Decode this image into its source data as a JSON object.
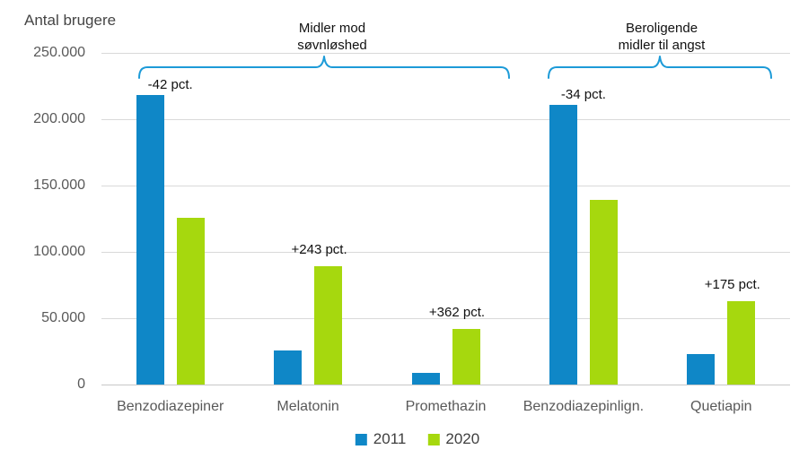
{
  "chart_data": {
    "type": "bar",
    "title": "Antal brugere",
    "categories": [
      "Benzodiazepiner",
      "Melatonin",
      "Promethazin",
      "Benzodiazepinlign.",
      "Quetiapin"
    ],
    "series": [
      {
        "name": "2011",
        "color": "#0f87c7",
        "values": [
          218000,
          26000,
          9000,
          211000,
          23000
        ]
      },
      {
        "name": "2020",
        "color": "#a6d80e",
        "values": [
          126000,
          89000,
          42000,
          139000,
          63000
        ]
      }
    ],
    "ylim": [
      0,
      250000
    ],
    "ytick_step": 50000,
    "ytick_labels": [
      "0",
      "50.000",
      "100.000",
      "150.000",
      "200.000",
      "250.000"
    ],
    "grid": true,
    "legend_position": "bottom",
    "annotations": [
      {
        "category_index": 0,
        "over": "2011",
        "text": "-42 pct."
      },
      {
        "category_index": 1,
        "over": "2020",
        "text": "+243 pct."
      },
      {
        "category_index": 2,
        "over": "2020",
        "text": "+362 pct."
      },
      {
        "category_index": 3,
        "over": "2011",
        "text": "-34 pct."
      },
      {
        "category_index": 4,
        "over": "2020",
        "text": "+175 pct."
      }
    ],
    "group_brackets": [
      {
        "label": "Midler mod\nsøvnløshed",
        "categories": [
          "Benzodiazepiner",
          "Melatonin",
          "Promethazin"
        ]
      },
      {
        "label": "Beroligende\nmidler til angst",
        "categories": [
          "Benzodiazepinlign.",
          "Quetiapin"
        ]
      }
    ],
    "colors": {
      "grid": "#d9d9d9",
      "baseline": "#c8c8c8",
      "axis_text": "#595959",
      "annotation_text": "#111111",
      "bracket": "#1d9bd8"
    }
  }
}
